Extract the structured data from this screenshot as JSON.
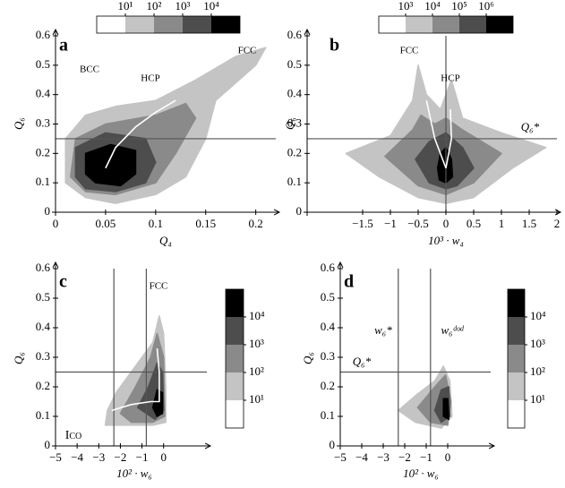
{
  "chart_data": [
    {
      "type": "density",
      "label": "a",
      "xlabel": "Q₄",
      "ylabel": "Q₆",
      "xlim": [
        0,
        0.22
      ],
      "ylim": [
        0,
        0.6
      ],
      "xticks": [
        0,
        0.05,
        0.1,
        0.15,
        0.2
      ],
      "yticks": [
        0,
        0.1,
        0.2,
        0.3,
        0.4,
        0.5,
        0.6
      ],
      "colorbar": {
        "orientation": "horizontal",
        "colors": [
          "#ffffff",
          "#c4c4c4",
          "#8a8a8a",
          "#4d4d4d",
          "#000000"
        ],
        "ticks": [
          {
            "value": 10,
            "label": "10¹"
          },
          {
            "value": 100,
            "label": "10²"
          },
          {
            "value": 1000,
            "label": "10³"
          },
          {
            "value": 10000,
            "label": "10⁴"
          }
        ]
      },
      "density": [
        {
          "level": 10,
          "x": [
            0.01,
            0.01,
            0.03,
            0.06,
            0.1,
            0.14,
            0.18,
            0.21,
            0.2,
            0.16,
            0.15,
            0.13,
            0.1,
            0.06,
            0.03
          ],
          "y": [
            0.1,
            0.25,
            0.33,
            0.36,
            0.38,
            0.45,
            0.53,
            0.56,
            0.5,
            0.38,
            0.25,
            0.12,
            0.06,
            0.03,
            0.05
          ]
        },
        {
          "level": 100,
          "x": [
            0.015,
            0.02,
            0.05,
            0.1,
            0.13,
            0.14,
            0.12,
            0.1,
            0.06,
            0.03
          ],
          "y": [
            0.12,
            0.25,
            0.3,
            0.33,
            0.37,
            0.32,
            0.2,
            0.1,
            0.06,
            0.07
          ]
        },
        {
          "level": 1000,
          "x": [
            0.02,
            0.02,
            0.05,
            0.09,
            0.1,
            0.09,
            0.06,
            0.03
          ],
          "y": [
            0.12,
            0.22,
            0.27,
            0.25,
            0.17,
            0.1,
            0.07,
            0.08
          ]
        },
        {
          "level": 10000,
          "x": [
            0.03,
            0.03,
            0.055,
            0.08,
            0.08,
            0.065,
            0.04
          ],
          "y": [
            0.13,
            0.2,
            0.23,
            0.21,
            0.13,
            0.09,
            0.1
          ]
        }
      ],
      "series": [
        {
          "color": "#ffffff",
          "x": [
            0.05,
            0.06,
            0.08,
            0.1,
            0.12
          ],
          "y": [
            0.15,
            0.22,
            0.29,
            0.34,
            0.38
          ]
        }
      ],
      "hlines": [
        0.25
      ],
      "vlines": [],
      "line_color": "#555555",
      "annotations": [
        "BCC",
        "HCP",
        "FCC"
      ]
    },
    {
      "type": "density",
      "label": "b",
      "xlabel": "10³ · w₄",
      "ylabel": "Q₆",
      "xlim": [
        -2.5,
        2
      ],
      "ylim": [
        0,
        0.6
      ],
      "xticks": [
        {
          "value": -1.5,
          "label": "−1.5"
        },
        {
          "value": -1,
          "label": "−1"
        },
        {
          "value": -0.5,
          "label": "−0.5"
        },
        0,
        0.5,
        1,
        1.5,
        2
      ],
      "yticks": [
        0,
        0.1,
        0.2,
        0.3,
        0.4,
        0.5,
        0.6
      ],
      "colorbar": {
        "orientation": "horizontal",
        "colors": [
          "#ffffff",
          "#c4c4c4",
          "#8a8a8a",
          "#4d4d4d",
          "#000000"
        ],
        "ticks": [
          {
            "value": 1000,
            "label": "10³"
          },
          {
            "value": 10000,
            "label": "10⁴"
          },
          {
            "value": 100000,
            "label": "10⁵"
          },
          {
            "value": 1000000,
            "label": "10⁶"
          }
        ]
      },
      "density": [
        {
          "level": 1000,
          "x": [
            -1.8,
            -1,
            -0.6,
            -0.5,
            -0.35,
            -0.1,
            0.1,
            0.3,
            1,
            1.8,
            1.2,
            0.5,
            0,
            -0.5,
            -1.2
          ],
          "y": [
            0.2,
            0.26,
            0.38,
            0.5,
            0.4,
            0.35,
            0.45,
            0.32,
            0.27,
            0.22,
            0.15,
            0.05,
            0.03,
            0.05,
            0.12
          ]
        },
        {
          "level": 10000,
          "x": [
            -1.1,
            -0.6,
            -0.45,
            -0.2,
            0,
            0.3,
            1,
            0.5,
            0,
            -0.5
          ],
          "y": [
            0.19,
            0.28,
            0.33,
            0.3,
            0.32,
            0.28,
            0.2,
            0.1,
            0.06,
            0.09
          ]
        },
        {
          "level": 100000,
          "x": [
            -0.55,
            -0.3,
            0,
            0.3,
            0.5,
            0.2,
            0,
            -0.3
          ],
          "y": [
            0.18,
            0.24,
            0.27,
            0.22,
            0.15,
            0.09,
            0.08,
            0.1
          ]
        },
        {
          "level": 1000000,
          "x": [
            -0.15,
            -0.1,
            0,
            0.1,
            0.12,
            0,
            -0.12
          ],
          "y": [
            0.15,
            0.2,
            0.22,
            0.18,
            0.12,
            0.1,
            0.11
          ]
        }
      ],
      "series": [
        {
          "color": "#ffffff",
          "x": [
            0,
            -0.2,
            -0.35
          ],
          "y": [
            0.15,
            0.25,
            0.38
          ]
        },
        {
          "color": "#ffffff",
          "x": [
            0,
            0.1,
            0.08
          ],
          "y": [
            0.15,
            0.25,
            0.35
          ]
        }
      ],
      "hlines": [
        0.25
      ],
      "vlines": [
        0
      ],
      "line_color": "#555555",
      "annotations": [
        "FCC",
        "HCP",
        "Q₆*"
      ]
    },
    {
      "type": "density",
      "label": "c",
      "xlabel": "10² · w₆",
      "ylabel": "Q₆",
      "xlim": [
        -5,
        2
      ],
      "ylim": [
        0,
        0.6
      ],
      "xticks": [
        {
          "value": -5,
          "label": "−5"
        },
        {
          "value": -4,
          "label": "−4"
        },
        {
          "value": -3,
          "label": "−3"
        },
        {
          "value": -2,
          "label": "−2"
        },
        {
          "value": -1,
          "label": "−1"
        },
        0
      ],
      "yticks": [
        0,
        0.1,
        0.2,
        0.3,
        0.4,
        0.5,
        0.6
      ],
      "colorbar": {
        "orientation": "vertical",
        "colors": [
          "#ffffff",
          "#c4c4c4",
          "#8a8a8a",
          "#4d4d4d",
          "#000000"
        ],
        "ticks": [
          {
            "value": 10,
            "label": "10¹"
          },
          {
            "value": 100,
            "label": "10²"
          },
          {
            "value": 1000,
            "label": "10³"
          },
          {
            "value": 10000,
            "label": "10⁴"
          }
        ]
      },
      "density": [
        {
          "level": 10,
          "x": [
            -2.6,
            -2.2,
            -1.2,
            -0.5,
            -0.2,
            0,
            0.1,
            0.1,
            -0.5,
            -1.5,
            -2.7
          ],
          "y": [
            0.12,
            0.18,
            0.28,
            0.35,
            0.44,
            0.38,
            0.2,
            0.08,
            0.07,
            0.07,
            0.07
          ]
        },
        {
          "level": 100,
          "x": [
            -2,
            -1.3,
            -0.6,
            -0.3,
            0,
            0.05,
            -0.5,
            -1.5
          ],
          "y": [
            0.11,
            0.2,
            0.3,
            0.38,
            0.3,
            0.1,
            0.08,
            0.08
          ]
        },
        {
          "level": 1000,
          "x": [
            -1.2,
            -0.7,
            -0.3,
            -0.05,
            0,
            -0.4
          ],
          "y": [
            0.13,
            0.2,
            0.28,
            0.25,
            0.12,
            0.09
          ]
        },
        {
          "level": 10000,
          "x": [
            -0.5,
            -0.3,
            -0.05,
            -0.05,
            -0.3
          ],
          "y": [
            0.13,
            0.19,
            0.18,
            0.11,
            0.1
          ]
        }
      ],
      "series": [
        {
          "color": "#ffffff",
          "x": [
            -2.4,
            -1.5,
            -0.6,
            -0.2,
            -0.2,
            -0.3
          ],
          "y": [
            0.12,
            0.14,
            0.15,
            0.15,
            0.25,
            0.33
          ]
        }
      ],
      "hlines": [
        0.25
      ],
      "vlines": [
        -2.3,
        -0.8
      ],
      "line_color": "#555555",
      "annotations": [
        "FCC",
        "Ico"
      ]
    },
    {
      "type": "density",
      "label": "d",
      "xlabel": "10² · w₆",
      "ylabel": "Q₆",
      "xlim": [
        -5,
        2
      ],
      "ylim": [
        0,
        0.6
      ],
      "xticks": [
        {
          "value": -5,
          "label": "−5"
        },
        {
          "value": -4,
          "label": "−4"
        },
        {
          "value": -3,
          "label": "−3"
        },
        {
          "value": -2,
          "label": "−2"
        },
        {
          "value": -1,
          "label": "−1"
        },
        0
      ],
      "yticks": [
        0,
        0.1,
        0.2,
        0.3,
        0.4,
        0.5,
        0.6
      ],
      "colorbar": {
        "orientation": "vertical",
        "colors": [
          "#ffffff",
          "#c4c4c4",
          "#8a8a8a",
          "#4d4d4d",
          "#000000"
        ],
        "ticks": [
          {
            "value": 10,
            "label": "10¹"
          },
          {
            "value": 100,
            "label": "10²"
          },
          {
            "value": 1000,
            "label": "10³"
          },
          {
            "value": 10000,
            "label": "10⁴"
          }
        ]
      },
      "density": [
        {
          "level": 10,
          "x": [
            -2.3,
            -1.5,
            -0.6,
            -0.2,
            0.1,
            0.2,
            -0.3,
            -1.5
          ],
          "y": [
            0.12,
            0.17,
            0.22,
            0.27,
            0.22,
            0.1,
            0.06,
            0.08
          ]
        },
        {
          "level": 100,
          "x": [
            -1.4,
            -0.6,
            -0.1,
            0.15,
            0,
            -0.8
          ],
          "y": [
            0.13,
            0.2,
            0.24,
            0.15,
            0.07,
            0.08
          ]
        },
        {
          "level": 1000,
          "x": [
            -0.6,
            -0.3,
            0.05,
            0.1,
            -0.3
          ],
          "y": [
            0.12,
            0.19,
            0.2,
            0.1,
            0.08
          ]
        },
        {
          "level": 10000,
          "x": [
            -0.2,
            -0.2,
            0,
            0.05
          ],
          "y": [
            0.1,
            0.16,
            0.16,
            0.09
          ]
        }
      ],
      "series": [],
      "hlines": [
        0.25
      ],
      "vlines": [
        -2.3,
        -0.8
      ],
      "line_color": "#555555",
      "annotations": [
        "w₆*",
        "w₆ᵈᵒᵈ",
        "Q₆*"
      ]
    }
  ]
}
